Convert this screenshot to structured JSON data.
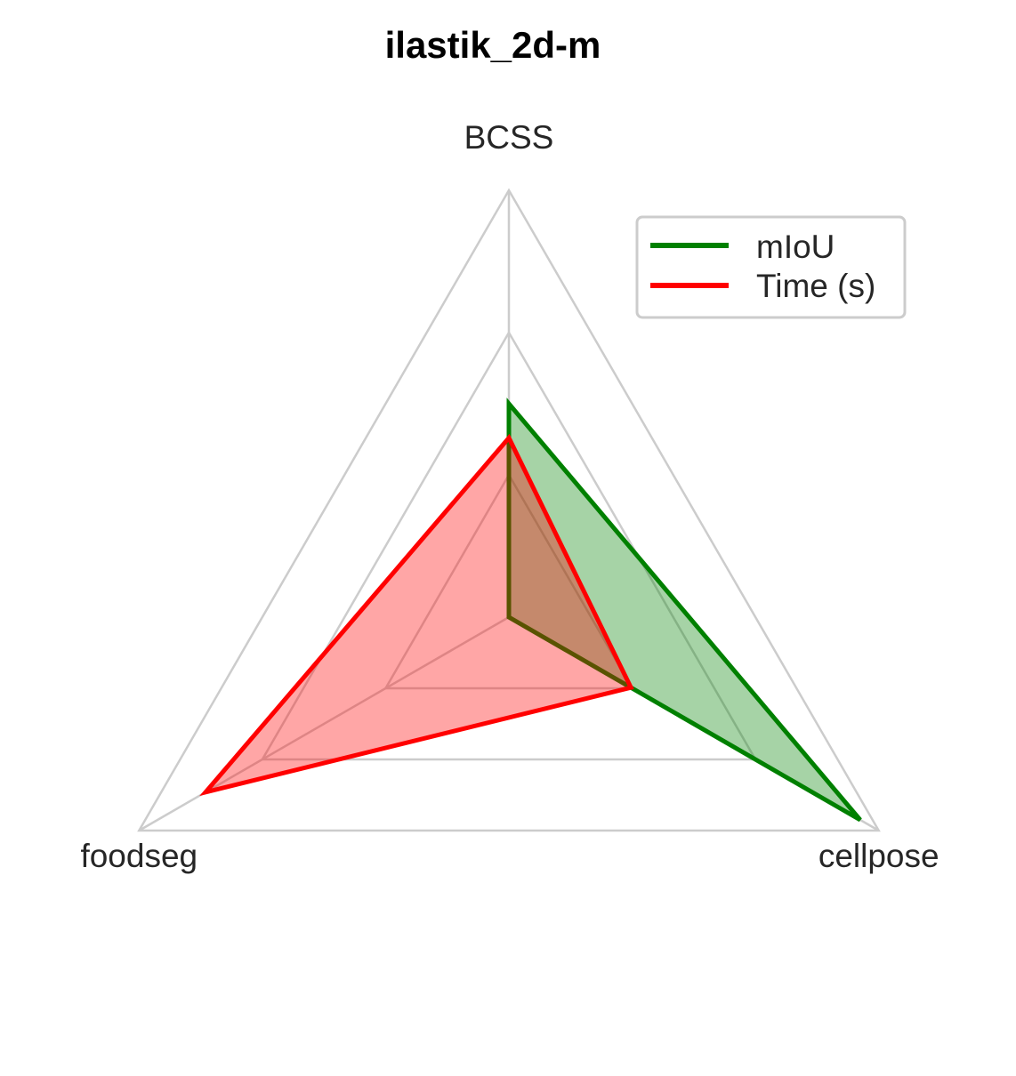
{
  "chart_data": {
    "type": "radar",
    "title": "ilastik_2d-m",
    "axes": [
      "BCSS",
      "cellpose",
      "foodseg"
    ],
    "series": [
      {
        "name": "mIoU",
        "values": [
          0.5,
          0.95,
          0.0
        ],
        "color": "#008000",
        "fill": "#008000"
      },
      {
        "name": "Time (s)",
        "values": [
          0.42,
          0.33,
          0.82
        ],
        "color": "#ff0000",
        "fill": "#ff0000"
      }
    ],
    "rlim": [
      0,
      1
    ],
    "grid": true,
    "legend_position": "top-right"
  }
}
